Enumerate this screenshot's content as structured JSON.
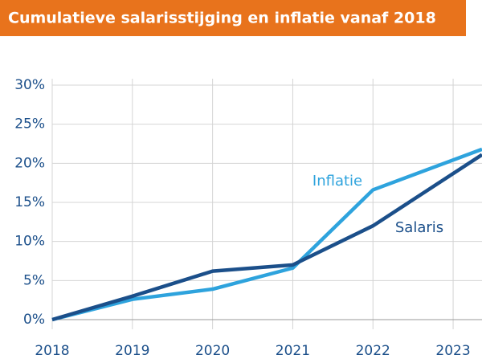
{
  "chart_data": {
    "type": "line",
    "title": "Cumulatieve salarisstijging en inflatie vanaf 2018",
    "x": [
      2018,
      2019,
      2020,
      2021,
      2022,
      2023.36
    ],
    "series": [
      {
        "name": "Inflatie",
        "color": "#2ea3dd",
        "values": [
          0,
          2.6,
          3.9,
          6.6,
          16.6,
          21.8
        ]
      },
      {
        "name": "Salaris",
        "color": "#1b4f8a",
        "values": [
          0,
          3.0,
          6.2,
          7.0,
          12.0,
          21.1
        ]
      }
    ],
    "xlim": [
      2018,
      2023.36
    ],
    "xticks": [
      2018,
      2019,
      2020,
      2021,
      2022,
      2023
    ],
    "ylim": [
      0,
      30
    ],
    "yticks": [
      {
        "value": 0,
        "label": "0%"
      },
      {
        "value": 5,
        "label": "5%"
      },
      {
        "value": 10,
        "label": "10%"
      },
      {
        "value": 15,
        "label": "15%"
      },
      {
        "value": 20,
        "label": "20%"
      },
      {
        "value": 25,
        "label": "25%"
      },
      {
        "value": 30,
        "label": "30%"
      }
    ],
    "grid": true,
    "title_color": "#e8731c"
  }
}
